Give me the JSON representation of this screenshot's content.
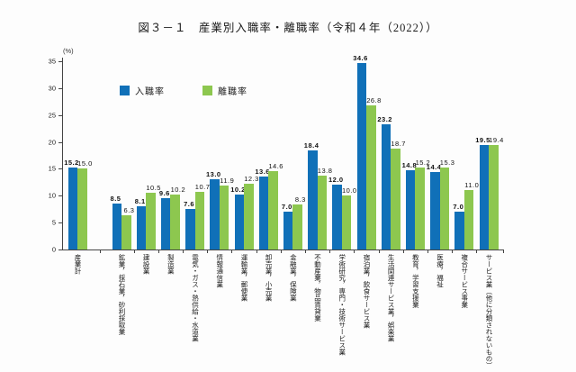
{
  "figure": {
    "title": "図３－１　産業別入職率・離職率（令和４年（2022））",
    "y_axis_unit": "(%)"
  },
  "legend": [
    {
      "label": "入職率",
      "color": "#1070B8"
    },
    {
      "label": "離職率",
      "color": "#8DC74F"
    }
  ],
  "chart_data": {
    "type": "bar",
    "title": "図３－１　産業別入職率・離職率（令和４年（2022））",
    "xlabel": "",
    "ylabel": "(%)",
    "ylim": [
      0,
      35
    ],
    "yticks": [
      0,
      5,
      10,
      15,
      20,
      25,
      30,
      35
    ],
    "grid": false,
    "legend_position": "top-center",
    "categories": [
      "産業計",
      "鉱業，採石業，砂利採取業",
      "建設業",
      "製造業",
      "電気・ガス・熱供給・水道業",
      "情報通信業",
      "運輸業，郵便業",
      "卸売業，小売業",
      "金融業，保険業",
      "不動産業，物品賃貸業",
      "学術研究，専門・技術サービス業",
      "宿泊業，飲食サービス業",
      "生活関連サービス業，娯楽業",
      "教育，学習支援業",
      "医療，福祉",
      "複合サービス事業",
      "サービス業（他に分類されないもの）"
    ],
    "series": [
      {
        "name": "入職率",
        "color": "#1070B8",
        "values": [
          15.2,
          8.5,
          8.1,
          9.6,
          7.6,
          13.0,
          10.2,
          13.6,
          7.0,
          18.4,
          12.0,
          34.6,
          23.2,
          14.8,
          14.4,
          7.0,
          19.5
        ]
      },
      {
        "name": "離職率",
        "color": "#8DC74F",
        "values": [
          15.0,
          6.3,
          10.5,
          10.2,
          10.7,
          11.9,
          12.3,
          14.6,
          8.3,
          13.8,
          10.0,
          26.8,
          18.7,
          15.2,
          15.3,
          11.0,
          19.4
        ]
      }
    ]
  }
}
